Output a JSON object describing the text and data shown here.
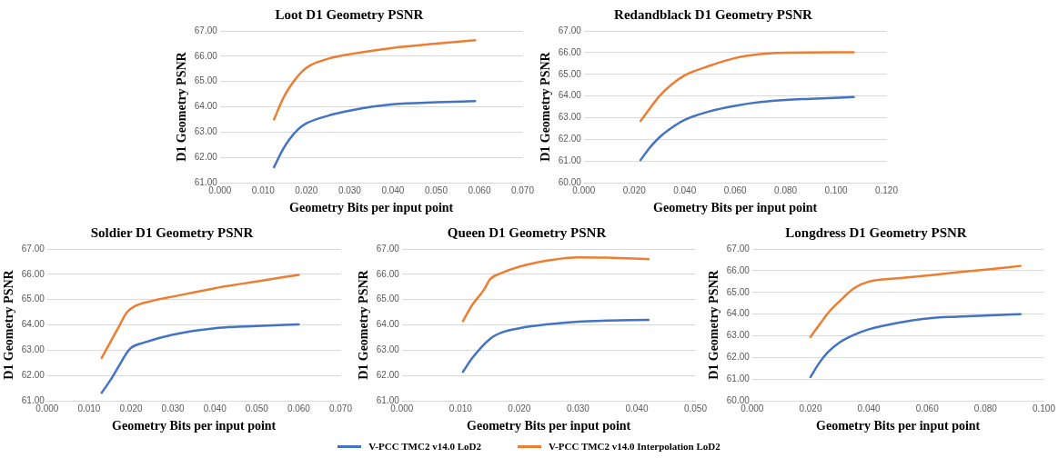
{
  "chart_data": [
    {
      "type": "line",
      "title": "Loot D1 Geometry PSNR",
      "xlabel": "Geometry Bits per input point",
      "ylabel": "D1 Geometry PSNR",
      "grid": "y",
      "legend": "bottom",
      "marker": "none",
      "line_style": "solid",
      "xlim": [
        0,
        0.07
      ],
      "xticks": [
        {
          "value": 0,
          "label": "0.000"
        },
        {
          "value": 0.01,
          "label": "0.010"
        },
        {
          "value": 0.02,
          "label": "0.020"
        },
        {
          "value": 0.03,
          "label": "0.030"
        },
        {
          "value": 0.04,
          "label": "0.040"
        },
        {
          "value": 0.05,
          "label": "0.050"
        },
        {
          "value": 0.06,
          "label": "0.060"
        },
        {
          "value": 0.07,
          "label": "0.070"
        }
      ],
      "ylim": [
        61,
        67
      ],
      "yticks": [
        {
          "value": 61,
          "label": "61.00"
        },
        {
          "value": 62,
          "label": "62.00"
        },
        {
          "value": 63,
          "label": "63.00"
        },
        {
          "value": 64,
          "label": "64.00"
        },
        {
          "value": 65,
          "label": "65.00"
        },
        {
          "value": 66,
          "label": "66.00"
        },
        {
          "value": 67,
          "label": "67.00"
        }
      ],
      "series": [
        {
          "name": "V-PCC TMC2 v14.0 LoD2",
          "color": "#4472c4",
          "x": [
            0.0125,
            0.0145,
            0.016,
            0.018,
            0.02,
            0.025,
            0.03,
            0.035,
            0.04,
            0.05,
            0.059
          ],
          "values": [
            61.62,
            62.3,
            62.7,
            63.1,
            63.35,
            63.65,
            63.85,
            64.0,
            64.1,
            64.18,
            64.23
          ]
        },
        {
          "name": "V-PCC TMC2 v14.0 Interpolation LoD2",
          "color": "#ed7d31",
          "x": [
            0.0125,
            0.0145,
            0.016,
            0.019,
            0.021,
            0.025,
            0.03,
            0.04,
            0.05,
            0.059
          ],
          "values": [
            63.5,
            64.3,
            64.75,
            65.4,
            65.65,
            65.9,
            66.08,
            66.33,
            66.5,
            66.63
          ]
        }
      ]
    },
    {
      "type": "line",
      "title": "Redandblack D1 Geometry PSNR",
      "xlabel": "Geometry Bits per input point",
      "ylabel": "D1 Geometry PSNR",
      "grid": "y",
      "legend": "bottom",
      "marker": "none",
      "line_style": "solid",
      "xlim": [
        0,
        0.12
      ],
      "xticks": [
        {
          "value": 0,
          "label": "0.000"
        },
        {
          "value": 0.02,
          "label": "0.020"
        },
        {
          "value": 0.04,
          "label": "0.040"
        },
        {
          "value": 0.06,
          "label": "0.060"
        },
        {
          "value": 0.08,
          "label": "0.080"
        },
        {
          "value": 0.1,
          "label": "0.100"
        },
        {
          "value": 0.12,
          "label": "0.120"
        }
      ],
      "ylim": [
        60,
        67
      ],
      "yticks": [
        {
          "value": 60,
          "label": "60.00"
        },
        {
          "value": 61,
          "label": "61.00"
        },
        {
          "value": 62,
          "label": "62.00"
        },
        {
          "value": 63,
          "label": "63.00"
        },
        {
          "value": 64,
          "label": "64.00"
        },
        {
          "value": 65,
          "label": "65.00"
        },
        {
          "value": 66,
          "label": "66.00"
        },
        {
          "value": 67,
          "label": "67.00"
        }
      ],
      "series": [
        {
          "name": "V-PCC TMC2 v14.0 LoD2",
          "color": "#4472c4",
          "x": [
            0.0225,
            0.026,
            0.03,
            0.035,
            0.04,
            0.05,
            0.06,
            0.07,
            0.08,
            0.09,
            0.107
          ],
          "values": [
            61.05,
            61.6,
            62.1,
            62.55,
            62.9,
            63.3,
            63.55,
            63.72,
            63.82,
            63.87,
            63.95
          ]
        },
        {
          "name": "V-PCC TMC2 v14.0 Interpolation LoD2",
          "color": "#ed7d31",
          "x": [
            0.0225,
            0.026,
            0.03,
            0.035,
            0.04,
            0.05,
            0.06,
            0.07,
            0.08,
            0.107
          ],
          "values": [
            62.85,
            63.4,
            64.0,
            64.55,
            64.95,
            65.4,
            65.75,
            65.93,
            66.0,
            66.02
          ]
        }
      ]
    },
    {
      "type": "line",
      "title": "Soldier D1 Geometry PSNR",
      "xlabel": "Geometry Bits per input point",
      "ylabel": "D1 Geometry PSNR",
      "grid": "y",
      "legend": "bottom",
      "marker": "none",
      "line_style": "solid",
      "xlim": [
        0,
        0.07
      ],
      "xticks": [
        {
          "value": 0,
          "label": "0.000"
        },
        {
          "value": 0.01,
          "label": "0.010"
        },
        {
          "value": 0.02,
          "label": "0.020"
        },
        {
          "value": 0.03,
          "label": "0.030"
        },
        {
          "value": 0.04,
          "label": "0.040"
        },
        {
          "value": 0.05,
          "label": "0.050"
        },
        {
          "value": 0.06,
          "label": "0.060"
        },
        {
          "value": 0.07,
          "label": "0.070"
        }
      ],
      "ylim": [
        61,
        67
      ],
      "yticks": [
        {
          "value": 61,
          "label": "61.00"
        },
        {
          "value": 62,
          "label": "62.00"
        },
        {
          "value": 63,
          "label": "63.00"
        },
        {
          "value": 64,
          "label": "64.00"
        },
        {
          "value": 65,
          "label": "65.00"
        },
        {
          "value": 66,
          "label": "66.00"
        },
        {
          "value": 67,
          "label": "67.00"
        }
      ],
      "series": [
        {
          "name": "V-PCC TMC2 v14.0 LoD2",
          "color": "#4472c4",
          "x": [
            0.013,
            0.015,
            0.017,
            0.019,
            0.02,
            0.023,
            0.03,
            0.04,
            0.05,
            0.06
          ],
          "values": [
            61.32,
            61.8,
            62.35,
            62.9,
            63.1,
            63.3,
            63.62,
            63.87,
            63.96,
            64.02
          ]
        },
        {
          "name": "V-PCC TMC2 v14.0 Interpolation LoD2",
          "color": "#ed7d31",
          "x": [
            0.013,
            0.015,
            0.017,
            0.019,
            0.021,
            0.025,
            0.03,
            0.04,
            0.05,
            0.06
          ],
          "values": [
            62.7,
            63.3,
            63.9,
            64.5,
            64.75,
            64.95,
            65.12,
            65.45,
            65.72,
            65.98
          ]
        }
      ]
    },
    {
      "type": "line",
      "title": "Queen D1 Geometry PSNR",
      "xlabel": "Geometry Bits per input point",
      "ylabel": "D1 Geometry PSNR",
      "grid": "y",
      "legend": "bottom",
      "marker": "none",
      "line_style": "solid",
      "xlim": [
        0,
        0.05
      ],
      "xticks": [
        {
          "value": 0,
          "label": "0.000"
        },
        {
          "value": 0.01,
          "label": "0.010"
        },
        {
          "value": 0.02,
          "label": "0.020"
        },
        {
          "value": 0.03,
          "label": "0.030"
        },
        {
          "value": 0.04,
          "label": "0.040"
        },
        {
          "value": 0.05,
          "label": "0.050"
        }
      ],
      "ylim": [
        61,
        67
      ],
      "yticks": [
        {
          "value": 61,
          "label": "61.00"
        },
        {
          "value": 62,
          "label": "62.00"
        },
        {
          "value": 63,
          "label": "63.00"
        },
        {
          "value": 64,
          "label": "64.00"
        },
        {
          "value": 65,
          "label": "65.00"
        },
        {
          "value": 66,
          "label": "66.00"
        },
        {
          "value": 67,
          "label": "67.00"
        }
      ],
      "series": [
        {
          "name": "V-PCC TMC2 v14.0 LoD2",
          "color": "#4472c4",
          "x": [
            0.0104,
            0.012,
            0.015,
            0.017,
            0.02,
            0.025,
            0.03,
            0.035,
            0.042
          ],
          "values": [
            62.15,
            62.7,
            63.45,
            63.7,
            63.87,
            64.03,
            64.13,
            64.17,
            64.2
          ]
        },
        {
          "name": "V-PCC TMC2 v14.0 Interpolation LoD2",
          "color": "#ed7d31",
          "x": [
            0.0104,
            0.012,
            0.014,
            0.015,
            0.017,
            0.02,
            0.025,
            0.03,
            0.035,
            0.042
          ],
          "values": [
            64.15,
            64.8,
            65.4,
            65.8,
            66.05,
            66.3,
            66.55,
            66.67,
            66.66,
            66.6
          ]
        }
      ]
    },
    {
      "type": "line",
      "title": "Longdress D1 Geometry PSNR",
      "xlabel": "Geometry Bits per input point",
      "ylabel": "D1 Geometry PSNR",
      "grid": "y",
      "legend": "bottom",
      "marker": "none",
      "line_style": "solid",
      "xlim": [
        0,
        0.1
      ],
      "xticks": [
        {
          "value": 0,
          "label": "0.000"
        },
        {
          "value": 0.02,
          "label": "0.020"
        },
        {
          "value": 0.04,
          "label": "0.040"
        },
        {
          "value": 0.06,
          "label": "0.060"
        },
        {
          "value": 0.08,
          "label": "0.080"
        },
        {
          "value": 0.1,
          "label": "0.100"
        }
      ],
      "ylim": [
        60,
        67
      ],
      "yticks": [
        {
          "value": 60,
          "label": "60.00"
        },
        {
          "value": 61,
          "label": "61.00"
        },
        {
          "value": 62,
          "label": "62.00"
        },
        {
          "value": 63,
          "label": "63.00"
        },
        {
          "value": 64,
          "label": "64.00"
        },
        {
          "value": 65,
          "label": "65.00"
        },
        {
          "value": 66,
          "label": "66.00"
        },
        {
          "value": 67,
          "label": "67.00"
        }
      ],
      "series": [
        {
          "name": "V-PCC TMC2 v14.0 LoD2",
          "color": "#4472c4",
          "x": [
            0.02,
            0.023,
            0.026,
            0.03,
            0.035,
            0.04,
            0.05,
            0.06,
            0.07,
            0.08,
            0.092
          ],
          "values": [
            61.1,
            61.75,
            62.25,
            62.7,
            63.05,
            63.3,
            63.6,
            63.8,
            63.88,
            63.93,
            64.0
          ]
        },
        {
          "name": "V-PCC TMC2 v14.0 Interpolation LoD2",
          "color": "#ed7d31",
          "x": [
            0.02,
            0.023,
            0.026,
            0.03,
            0.035,
            0.04,
            0.05,
            0.06,
            0.07,
            0.08,
            0.092
          ],
          "values": [
            62.95,
            63.5,
            64.05,
            64.6,
            65.2,
            65.5,
            65.65,
            65.78,
            65.92,
            66.05,
            66.22
          ]
        }
      ]
    }
  ]
}
